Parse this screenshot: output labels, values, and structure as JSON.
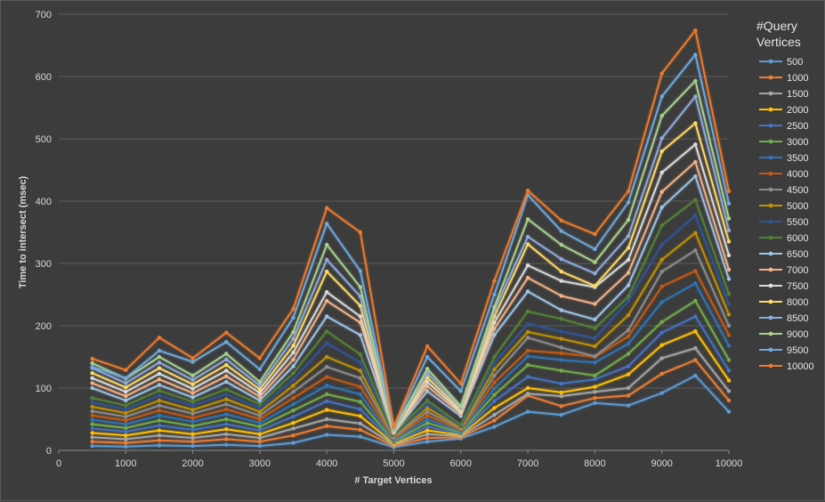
{
  "chart_data": {
    "type": "line",
    "title": "",
    "xlabel": "# Target Vertices",
    "ylabel": "Time to intersect (msec)",
    "xlim": [
      0,
      10000
    ],
    "ylim": [
      0,
      700
    ],
    "x_ticks": [
      "0",
      "1000",
      "2000",
      "3000",
      "4000",
      "5000",
      "6000",
      "7000",
      "8000",
      "9000",
      "10000"
    ],
    "y_ticks": [
      "0",
      "100",
      "200",
      "300",
      "400",
      "500",
      "600",
      "700"
    ],
    "grid": true,
    "legend_position": "right",
    "legend_title": "#Query Vertices",
    "x": [
      500,
      1000,
      1500,
      2000,
      2500,
      3000,
      3500,
      4000,
      4500,
      5000,
      5500,
      6000,
      6500,
      7000,
      7500,
      8000,
      8500,
      9000,
      9500,
      10000
    ],
    "series": [
      {
        "name": "500",
        "color": "#5b9bd5",
        "values": [
          7,
          6,
          8,
          7,
          9,
          7,
          12,
          25,
          22,
          5,
          14,
          19,
          38,
          62,
          57,
          76,
          72,
          92,
          120,
          62
        ]
      },
      {
        "name": "1000",
        "color": "#ed7d31",
        "values": [
          14,
          12,
          16,
          14,
          18,
          14,
          24,
          39,
          33,
          7,
          20,
          21,
          48,
          88,
          71,
          84,
          88,
          123,
          145,
          80
        ]
      },
      {
        "name": "1500",
        "color": "#a5a5a5",
        "values": [
          21,
          18,
          24,
          20,
          26,
          20,
          35,
          50,
          43,
          9,
          26,
          23,
          57,
          91,
          87,
          94,
          100,
          148,
          164,
          95
        ]
      },
      {
        "name": "2000",
        "color": "#ffc000",
        "values": [
          28,
          24,
          32,
          26,
          34,
          26,
          44,
          65,
          55,
          11,
          32,
          25,
          68,
          100,
          93,
          102,
          122,
          169,
          191,
          112
        ]
      },
      {
        "name": "2500",
        "color": "#4472c4",
        "values": [
          35,
          30,
          40,
          33,
          42,
          32,
          54,
          79,
          66,
          13,
          38,
          27,
          79,
          118,
          107,
          114,
          135,
          189,
          215,
          128
        ]
      },
      {
        "name": "3000",
        "color": "#70ad47",
        "values": [
          42,
          36,
          48,
          39,
          50,
          38,
          64,
          90,
          78,
          15,
          44,
          29,
          89,
          137,
          128,
          120,
          155,
          206,
          240,
          145
        ]
      },
      {
        "name": "3500",
        "color": "#2e75b6",
        "values": [
          49,
          42,
          56,
          46,
          58,
          44,
          74,
          104,
          90,
          17,
          50,
          31,
          99,
          151,
          145,
          141,
          171,
          238,
          268,
          168
        ]
      },
      {
        "name": "4000",
        "color": "#c55a11",
        "values": [
          56,
          48,
          64,
          52,
          66,
          50,
          84,
          118,
          102,
          19,
          56,
          33,
          109,
          160,
          156,
          150,
          183,
          263,
          288,
          185
        ]
      },
      {
        "name": "4500",
        "color": "#8c8c8c",
        "values": [
          63,
          54,
          72,
          59,
          74,
          56,
          94,
          134,
          116,
          21,
          62,
          35,
          120,
          181,
          165,
          151,
          193,
          287,
          321,
          200
        ]
      },
      {
        "name": "5000",
        "color": "#bf9000",
        "values": [
          70,
          60,
          80,
          65,
          82,
          62,
          104,
          150,
          128,
          23,
          68,
          37,
          130,
          190,
          179,
          167,
          217,
          306,
          349,
          218
        ]
      },
      {
        "name": "5500",
        "color": "#2f5597",
        "values": [
          77,
          66,
          88,
          72,
          90,
          68,
          114,
          172,
          141,
          25,
          74,
          39,
          140,
          203,
          191,
          180,
          240,
          330,
          377,
          235
        ]
      },
      {
        "name": "6000",
        "color": "#548235",
        "values": [
          84,
          72,
          96,
          78,
          98,
          74,
          124,
          191,
          154,
          27,
          80,
          41,
          150,
          223,
          211,
          196,
          247,
          361,
          402,
          251
        ]
      },
      {
        "name": "6500",
        "color": "#9dc3e6",
        "values": [
          100,
          80,
          105,
          85,
          110,
          80,
          135,
          215,
          185,
          28,
          95,
          55,
          185,
          255,
          225,
          210,
          265,
          390,
          440,
          275
        ]
      },
      {
        "name": "7000",
        "color": "#f4b183",
        "values": [
          108,
          87,
          114,
          92,
          119,
          86,
          146,
          240,
          205,
          29,
          103,
          59,
          195,
          277,
          248,
          235,
          285,
          415,
          463,
          290
        ]
      },
      {
        "name": "7500",
        "color": "#dbdbdb",
        "values": [
          116,
          94,
          123,
          99,
          128,
          92,
          157,
          254,
          215,
          30,
          110,
          62,
          205,
          297,
          272,
          262,
          306,
          446,
          491,
          313
        ]
      },
      {
        "name": "8000",
        "color": "#ffd966",
        "values": [
          124,
          101,
          132,
          106,
          137,
          98,
          168,
          287,
          232,
          31,
          117,
          65,
          215,
          331,
          287,
          264,
          325,
          480,
          525,
          335
        ]
      },
      {
        "name": "8500",
        "color": "#8faadc",
        "values": [
          132,
          108,
          141,
          113,
          146,
          104,
          179,
          306,
          247,
          32,
          124,
          68,
          225,
          343,
          307,
          284,
          344,
          501,
          568,
          353
        ]
      },
      {
        "name": "9000",
        "color": "#a9d18e",
        "values": [
          140,
          115,
          150,
          120,
          155,
          110,
          190,
          330,
          262,
          33,
          131,
          71,
          230,
          371,
          330,
          302,
          370,
          537,
          593,
          372
        ]
      },
      {
        "name": "9500",
        "color": "#6fa8dc",
        "values": [
          134,
          116,
          160,
          142,
          174,
          130,
          213,
          364,
          288,
          36,
          150,
          95,
          250,
          410,
          352,
          323,
          398,
          568,
          635,
          396
        ]
      },
      {
        "name": "10000",
        "color": "#f07a2a",
        "values": [
          147,
          129,
          181,
          148,
          189,
          148,
          227,
          389,
          350,
          38,
          167,
          107,
          272,
          417,
          369,
          347,
          416,
          605,
          674,
          416
        ]
      }
    ]
  }
}
